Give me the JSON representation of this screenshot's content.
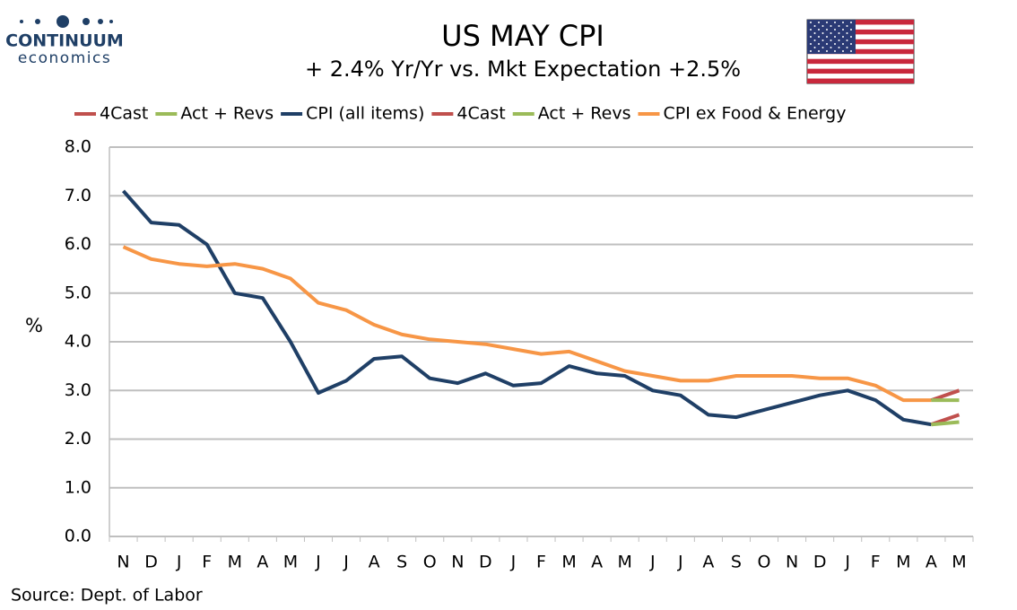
{
  "chart_data": {
    "type": "line",
    "logo_top": "CONTINUUM",
    "logo_bottom": "economics",
    "title": "US MAY CPI",
    "subtitle": "+ 2.4% Yr/Yr  vs. Mkt Expectation +2.5%",
    "y_label": "%",
    "source": "Source: Dept. of Labor",
    "categories": [
      "N",
      "D",
      "J",
      "F",
      "M",
      "A",
      "M",
      "J",
      "J",
      "A",
      "S",
      "O",
      "N",
      "D",
      "J",
      "F",
      "M",
      "A",
      "M",
      "J",
      "J",
      "A",
      "S",
      "O",
      "N",
      "D",
      "J",
      "F",
      "M",
      "A",
      "M"
    ],
    "ylim": [
      0,
      8
    ],
    "yticks": [
      {
        "value": 0,
        "label": "0.0"
      },
      {
        "value": 1,
        "label": "1.0"
      },
      {
        "value": 2,
        "label": "2.0"
      },
      {
        "value": 3,
        "label": "3.0"
      },
      {
        "value": 4,
        "label": "4.0"
      },
      {
        "value": 5,
        "label": "5.0"
      },
      {
        "value": 6,
        "label": "6.0"
      },
      {
        "value": 7,
        "label": "7.0"
      },
      {
        "value": 8,
        "label": "8.0"
      }
    ],
    "grid": true,
    "legend": "top",
    "series": [
      {
        "name": "4Cast",
        "color": "#c0504d",
        "values": [
          null,
          null,
          null,
          null,
          null,
          null,
          null,
          null,
          null,
          null,
          null,
          null,
          null,
          null,
          null,
          null,
          null,
          null,
          null,
          null,
          null,
          null,
          null,
          null,
          null,
          null,
          null,
          null,
          null,
          2.3,
          2.5
        ]
      },
      {
        "name": "Act + Revs",
        "color": "#9bbb59",
        "values": [
          null,
          null,
          null,
          null,
          null,
          null,
          null,
          null,
          null,
          null,
          null,
          null,
          null,
          null,
          null,
          null,
          null,
          null,
          null,
          null,
          null,
          null,
          null,
          null,
          null,
          null,
          null,
          null,
          null,
          2.3,
          2.35
        ]
      },
      {
        "name": "CPI (all items)",
        "color": "#1f3f66",
        "values": [
          7.1,
          6.45,
          6.4,
          6.0,
          5.0,
          4.9,
          4.0,
          2.95,
          3.2,
          3.65,
          3.7,
          3.25,
          3.15,
          3.35,
          3.1,
          3.15,
          3.5,
          3.35,
          3.3,
          3.0,
          2.9,
          2.5,
          2.45,
          2.6,
          2.75,
          2.9,
          3.0,
          2.8,
          2.4,
          2.3,
          null
        ]
      },
      {
        "name": "4Cast",
        "color": "#c0504d",
        "values": [
          null,
          null,
          null,
          null,
          null,
          null,
          null,
          null,
          null,
          null,
          null,
          null,
          null,
          null,
          null,
          null,
          null,
          null,
          null,
          null,
          null,
          null,
          null,
          null,
          null,
          null,
          null,
          null,
          null,
          2.8,
          3.0
        ]
      },
      {
        "name": "Act + Revs",
        "color": "#9bbb59",
        "values": [
          null,
          null,
          null,
          null,
          null,
          null,
          null,
          null,
          null,
          null,
          null,
          null,
          null,
          null,
          null,
          null,
          null,
          null,
          null,
          null,
          null,
          null,
          null,
          null,
          null,
          null,
          null,
          null,
          null,
          2.8,
          2.8
        ]
      },
      {
        "name": "CPI ex Food & Energy",
        "color": "#f79646",
        "values": [
          5.95,
          5.7,
          5.6,
          5.55,
          5.6,
          5.5,
          5.3,
          4.8,
          4.65,
          4.35,
          4.15,
          4.05,
          4.0,
          3.95,
          3.85,
          3.75,
          3.8,
          3.6,
          3.4,
          3.3,
          3.2,
          3.2,
          3.3,
          3.3,
          3.3,
          3.25,
          3.25,
          3.1,
          2.8,
          2.8,
          null
        ]
      }
    ]
  }
}
